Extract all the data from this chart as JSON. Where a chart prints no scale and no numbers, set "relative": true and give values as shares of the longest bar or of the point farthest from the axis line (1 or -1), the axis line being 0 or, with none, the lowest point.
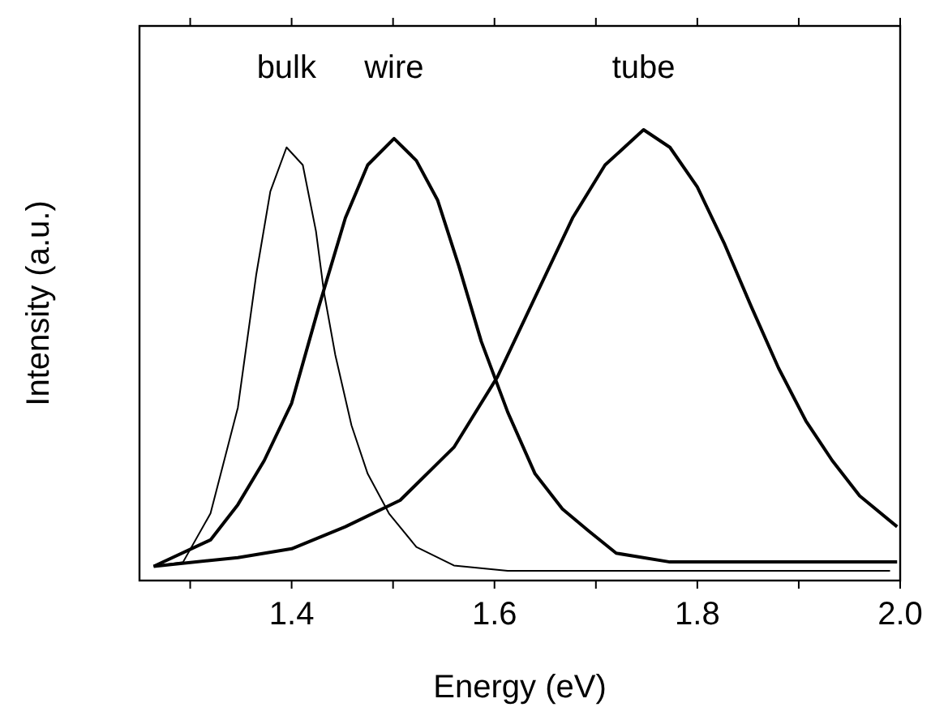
{
  "chart_data": {
    "type": "line",
    "xlabel": "Energy (eV)",
    "ylabel": "Intensity (a.u.)",
    "relative": true,
    "xlim": [
      1.25,
      2.0
    ],
    "xticks": [
      {
        "value": 1.3,
        "label": null
      },
      1.4,
      {
        "value": 1.5,
        "label": null
      },
      1.6,
      {
        "value": 1.7,
        "label": null
      },
      1.8,
      {
        "value": 1.9,
        "label": null
      },
      {
        "value": 2.0,
        "label": "2.0"
      }
    ],
    "grid": false,
    "legend": "top",
    "marker": "none",
    "line_style": "solid",
    "series": [
      {
        "name": "bulk",
        "color": "#000000",
        "x": [
          1.264,
          1.293,
          1.32,
          1.347,
          1.365,
          1.379,
          1.395,
          1.411,
          1.424,
          1.432,
          1.443,
          1.459,
          1.475,
          1.496,
          1.523,
          1.56,
          1.613,
          1.72,
          1.85,
          1.99
        ],
        "values": [
          0.01,
          0.02,
          0.13,
          0.37,
          0.67,
          0.86,
          0.96,
          0.92,
          0.77,
          0.63,
          0.49,
          0.33,
          0.22,
          0.13,
          0.054,
          0.012,
          0,
          0,
          0,
          0
        ]
      },
      {
        "name": "wire",
        "color": "#000000",
        "x": [
          1.264,
          1.32,
          1.347,
          1.373,
          1.4,
          1.427,
          1.453,
          1.475,
          1.501,
          1.523,
          1.544,
          1.565,
          1.587,
          1.613,
          1.64,
          1.667,
          1.693,
          1.72,
          1.773,
          1.88,
          1.997
        ],
        "values": [
          0.01,
          0.07,
          0.15,
          0.25,
          0.38,
          0.6,
          0.8,
          0.92,
          0.98,
          0.93,
          0.84,
          0.69,
          0.52,
          0.36,
          0.22,
          0.14,
          0.09,
          0.04,
          0.02,
          0.02,
          0.02
        ]
      },
      {
        "name": "tube",
        "color": "#000000",
        "x": [
          1.264,
          1.347,
          1.4,
          1.453,
          1.507,
          1.56,
          1.603,
          1.64,
          1.677,
          1.709,
          1.747,
          1.773,
          1.8,
          1.827,
          1.853,
          1.88,
          1.907,
          1.933,
          1.96,
          1.997
        ],
        "values": [
          0.01,
          0.03,
          0.05,
          0.1,
          0.16,
          0.28,
          0.44,
          0.62,
          0.8,
          0.92,
          1.0,
          0.96,
          0.87,
          0.74,
          0.6,
          0.46,
          0.34,
          0.25,
          0.17,
          0.1
        ]
      }
    ]
  }
}
